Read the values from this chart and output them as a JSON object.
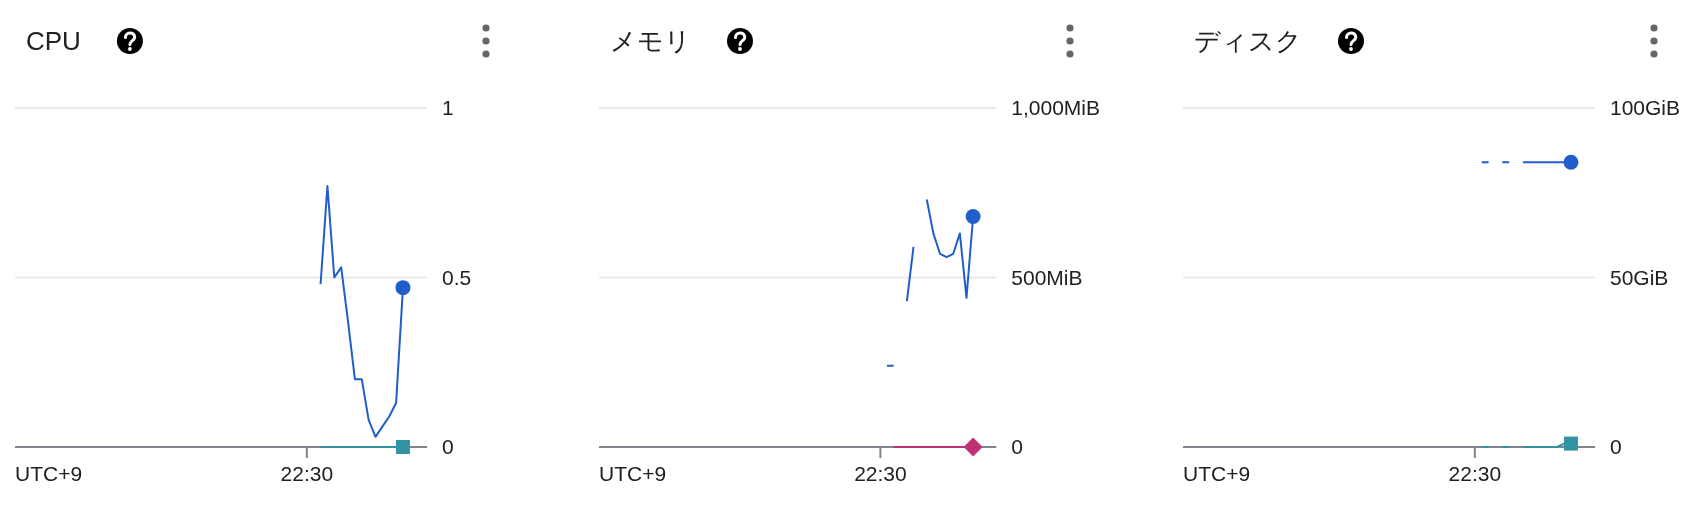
{
  "chart_data": [
    {
      "type": "line",
      "title": "CPU",
      "xlabel": "UTC+9",
      "categories": [
        null,
        null,
        null,
        null,
        null,
        null,
        null,
        null,
        null,
        null,
        null,
        null,
        null,
        null,
        null,
        null,
        null,
        null,
        null,
        null,
        null,
        null,
        null,
        null,
        null,
        null,
        null,
        null,
        null,
        null,
        null,
        null,
        null,
        null,
        null,
        null,
        null,
        null,
        null,
        null,
        null,
        null,
        "22:30",
        null,
        null,
        null,
        null,
        null,
        null,
        null,
        null,
        null,
        null,
        null,
        null,
        null,
        null,
        null,
        null,
        null
      ],
      "ylim": [
        0,
        1
      ],
      "yticks": [
        {
          "value": 0,
          "label": "0"
        },
        {
          "value": 0.5,
          "label": "0.5"
        },
        {
          "value": 1,
          "label": "1"
        }
      ],
      "grid": "y",
      "series": [
        {
          "color": "#1f5ecb",
          "values": [
            null,
            null,
            null,
            null,
            null,
            null,
            null,
            null,
            null,
            null,
            null,
            null,
            null,
            null,
            null,
            null,
            null,
            null,
            null,
            null,
            null,
            null,
            null,
            null,
            null,
            null,
            null,
            null,
            null,
            null,
            null,
            null,
            null,
            null,
            null,
            null,
            null,
            null,
            null,
            null,
            null,
            null,
            null,
            null,
            0.48,
            0.77,
            0.5,
            0.53,
            0.37,
            0.2,
            0.2,
            0.08,
            0.03,
            0.06,
            0.09,
            0.13,
            0.47,
            null,
            null,
            null
          ]
        },
        {
          "color": "#3392a3",
          "values": [
            null,
            null,
            null,
            null,
            null,
            null,
            null,
            null,
            null,
            null,
            null,
            null,
            null,
            null,
            null,
            null,
            null,
            null,
            null,
            null,
            null,
            null,
            null,
            null,
            null,
            null,
            null,
            null,
            null,
            null,
            null,
            null,
            null,
            null,
            null,
            null,
            null,
            null,
            null,
            null,
            null,
            null,
            null,
            null,
            0,
            0,
            0,
            0,
            0,
            0,
            0,
            0,
            0,
            0,
            0,
            0,
            0,
            null,
            null,
            null
          ]
        },
        {
          "type": "scatter",
          "marker": "circle",
          "color": "#1f5ecb",
          "values": [
            null,
            null,
            null,
            null,
            null,
            null,
            null,
            null,
            null,
            null,
            null,
            null,
            null,
            null,
            null,
            null,
            null,
            null,
            null,
            null,
            null,
            null,
            null,
            null,
            null,
            null,
            null,
            null,
            null,
            null,
            null,
            null,
            null,
            null,
            null,
            null,
            null,
            null,
            null,
            null,
            null,
            null,
            null,
            null,
            null,
            null,
            null,
            null,
            null,
            null,
            null,
            null,
            null,
            null,
            null,
            null,
            0.47,
            null,
            null,
            null
          ]
        },
        {
          "type": "scatter",
          "marker": "square",
          "color": "#3392a3",
          "values": [
            null,
            null,
            null,
            null,
            null,
            null,
            null,
            null,
            null,
            null,
            null,
            null,
            null,
            null,
            null,
            null,
            null,
            null,
            null,
            null,
            null,
            null,
            null,
            null,
            null,
            null,
            null,
            null,
            null,
            null,
            null,
            null,
            null,
            null,
            null,
            null,
            null,
            null,
            null,
            null,
            null,
            null,
            null,
            null,
            null,
            null,
            null,
            null,
            null,
            null,
            null,
            null,
            null,
            null,
            null,
            null,
            0,
            null,
            null,
            null
          ]
        }
      ]
    },
    {
      "type": "line",
      "title": "メモリ",
      "xlabel": "UTC+9",
      "categories": [
        null,
        null,
        null,
        null,
        null,
        null,
        null,
        null,
        null,
        null,
        null,
        null,
        null,
        null,
        null,
        null,
        null,
        null,
        null,
        null,
        null,
        null,
        null,
        null,
        null,
        null,
        null,
        null,
        null,
        null,
        null,
        null,
        null,
        null,
        null,
        null,
        null,
        null,
        null,
        null,
        null,
        null,
        "22:30",
        null,
        null,
        null,
        null,
        null,
        null,
        null,
        null,
        null,
        null,
        null,
        null,
        null,
        null,
        null,
        null,
        null
      ],
      "ylim": [
        0,
        1000
      ],
      "yticks": [
        {
          "value": 0,
          "label": "0"
        },
        {
          "value": 500,
          "label": "500MiB"
        },
        {
          "value": 1000,
          "label": "1,000MiB"
        }
      ],
      "grid": "y",
      "series": [
        {
          "color": "#1f5ecb",
          "values": [
            null,
            null,
            null,
            null,
            null,
            null,
            null,
            null,
            null,
            null,
            null,
            null,
            null,
            null,
            null,
            null,
            null,
            null,
            null,
            null,
            null,
            null,
            null,
            null,
            null,
            null,
            null,
            null,
            null,
            null,
            null,
            null,
            null,
            null,
            null,
            null,
            null,
            null,
            null,
            null,
            null,
            null,
            null,
            240,
            240,
            null,
            430,
            590,
            null,
            730,
            630,
            570,
            560,
            570,
            630,
            440,
            680,
            null,
            null,
            null
          ]
        },
        {
          "color": "#c13077",
          "values": [
            null,
            null,
            null,
            null,
            null,
            null,
            null,
            null,
            null,
            null,
            null,
            null,
            null,
            null,
            null,
            null,
            null,
            null,
            null,
            null,
            null,
            null,
            null,
            null,
            null,
            null,
            null,
            null,
            null,
            null,
            null,
            null,
            null,
            null,
            null,
            null,
            null,
            null,
            null,
            null,
            null,
            null,
            null,
            null,
            0,
            0,
            0,
            0,
            0,
            0,
            0,
            0,
            0,
            0,
            0,
            0,
            0,
            null,
            null,
            null
          ]
        },
        {
          "type": "scatter",
          "marker": "circle",
          "color": "#1f5ecb",
          "values": [
            null,
            null,
            null,
            null,
            null,
            null,
            null,
            null,
            null,
            null,
            null,
            null,
            null,
            null,
            null,
            null,
            null,
            null,
            null,
            null,
            null,
            null,
            null,
            null,
            null,
            null,
            null,
            null,
            null,
            null,
            null,
            null,
            null,
            null,
            null,
            null,
            null,
            null,
            null,
            null,
            null,
            null,
            null,
            null,
            null,
            null,
            null,
            null,
            null,
            null,
            null,
            null,
            null,
            null,
            null,
            null,
            680,
            null,
            null,
            null
          ]
        },
        {
          "type": "scatter",
          "marker": "diamond",
          "color": "#c13077",
          "values": [
            null,
            null,
            null,
            null,
            null,
            null,
            null,
            null,
            null,
            null,
            null,
            null,
            null,
            null,
            null,
            null,
            null,
            null,
            null,
            null,
            null,
            null,
            null,
            null,
            null,
            null,
            null,
            null,
            null,
            null,
            null,
            null,
            null,
            null,
            null,
            null,
            null,
            null,
            null,
            null,
            null,
            null,
            null,
            null,
            null,
            null,
            null,
            null,
            null,
            null,
            null,
            null,
            null,
            null,
            null,
            null,
            0,
            null,
            null,
            null
          ]
        }
      ]
    },
    {
      "type": "line",
      "title": "ディスク",
      "xlabel": "UTC+9",
      "categories": [
        null,
        null,
        null,
        null,
        null,
        null,
        null,
        null,
        null,
        null,
        null,
        null,
        null,
        null,
        null,
        null,
        null,
        null,
        null,
        null,
        null,
        null,
        null,
        null,
        null,
        null,
        null,
        null,
        null,
        null,
        null,
        null,
        null,
        null,
        null,
        null,
        null,
        null,
        null,
        null,
        null,
        null,
        "22:30",
        null,
        null,
        null,
        null,
        null,
        null,
        null,
        null,
        null,
        null,
        null,
        null,
        null,
        null,
        null,
        null,
        null
      ],
      "ylim": [
        0,
        100
      ],
      "yticks": [
        {
          "value": 0,
          "label": "0"
        },
        {
          "value": 50,
          "label": "50GiB"
        },
        {
          "value": 100,
          "label": "100GiB"
        }
      ],
      "grid": "y",
      "series": [
        {
          "color": "#1f5ecb",
          "values": [
            null,
            null,
            null,
            null,
            null,
            null,
            null,
            null,
            null,
            null,
            null,
            null,
            null,
            null,
            null,
            null,
            null,
            null,
            null,
            null,
            null,
            null,
            null,
            null,
            null,
            null,
            null,
            null,
            null,
            null,
            null,
            null,
            null,
            null,
            null,
            null,
            null,
            null,
            null,
            null,
            null,
            null,
            null,
            84,
            84,
            null,
            84,
            84,
            null,
            84,
            84,
            84,
            84,
            84,
            84,
            84,
            84,
            null,
            null,
            null
          ]
        },
        {
          "color": "#3392a3",
          "values": [
            null,
            null,
            null,
            null,
            null,
            null,
            null,
            null,
            null,
            null,
            null,
            null,
            null,
            null,
            null,
            null,
            null,
            null,
            null,
            null,
            null,
            null,
            null,
            null,
            null,
            null,
            null,
            null,
            null,
            null,
            null,
            null,
            null,
            null,
            null,
            null,
            null,
            null,
            null,
            null,
            null,
            null,
            null,
            0,
            0,
            null,
            0,
            0,
            null,
            0,
            0,
            0,
            0,
            0,
            0,
            1,
            1,
            null,
            null,
            null
          ]
        },
        {
          "type": "scatter",
          "marker": "circle",
          "color": "#1f5ecb",
          "values": [
            null,
            null,
            null,
            null,
            null,
            null,
            null,
            null,
            null,
            null,
            null,
            null,
            null,
            null,
            null,
            null,
            null,
            null,
            null,
            null,
            null,
            null,
            null,
            null,
            null,
            null,
            null,
            null,
            null,
            null,
            null,
            null,
            null,
            null,
            null,
            null,
            null,
            null,
            null,
            null,
            null,
            null,
            null,
            null,
            null,
            null,
            null,
            null,
            null,
            null,
            null,
            null,
            null,
            null,
            null,
            null,
            84,
            null,
            null,
            null
          ]
        },
        {
          "type": "scatter",
          "marker": "square",
          "color": "#3392a3",
          "values": [
            null,
            null,
            null,
            null,
            null,
            null,
            null,
            null,
            null,
            null,
            null,
            null,
            null,
            null,
            null,
            null,
            null,
            null,
            null,
            null,
            null,
            null,
            null,
            null,
            null,
            null,
            null,
            null,
            null,
            null,
            null,
            null,
            null,
            null,
            null,
            null,
            null,
            null,
            null,
            null,
            null,
            null,
            null,
            null,
            null,
            null,
            null,
            null,
            null,
            null,
            null,
            null,
            null,
            null,
            null,
            null,
            1,
            null,
            null,
            null
          ]
        }
      ]
    }
  ]
}
